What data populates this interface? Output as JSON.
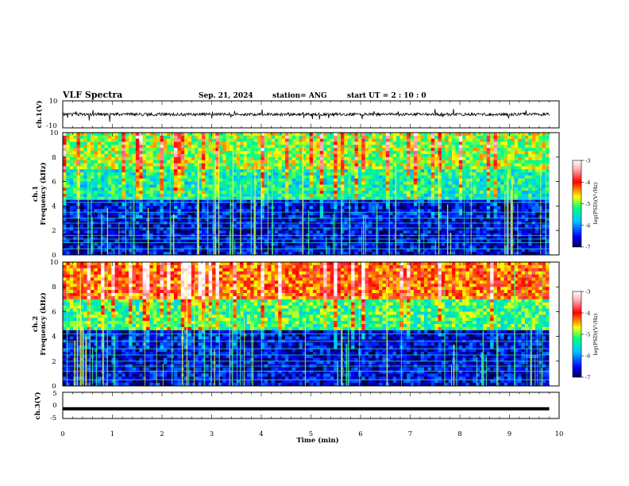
{
  "header": {
    "title": "VLF Spectra",
    "date": "Sep. 21, 2024",
    "station": "station= ANG",
    "start": "start UT = 2 : 10 : 0"
  },
  "chart_data": [
    {
      "type": "line",
      "name": "ch1-waveform",
      "ylabel": "ch.1(V)",
      "ylim": [
        -10,
        10
      ],
      "yticks": [
        "10",
        "-10"
      ],
      "x": [
        0,
        10
      ],
      "xlim": [
        0,
        10
      ],
      "mean_value": 0,
      "description_of_series": "noisy voltage trace near 0 V with sporadic spikes"
    },
    {
      "type": "heatmap",
      "name": "ch1-spectrogram",
      "ylabel": "ch.1 Frequency (kHz)",
      "ylim": [
        0,
        10
      ],
      "yticks": [
        "0",
        "2",
        "4",
        "6",
        "8",
        "10"
      ],
      "xlim": [
        0,
        9.8
      ],
      "colorbar": {
        "label": "log(PSD)(V²/Hz)",
        "range": [
          -7,
          -3
        ],
        "ticks": [
          "-3",
          "-4",
          "-5",
          "-6",
          "-7"
        ]
      },
      "band_levels": [
        {
          "freq_range": [
            0,
            4.5
          ],
          "level": -6.6
        },
        {
          "freq_range": [
            4.5,
            7
          ],
          "level": -5.4
        },
        {
          "freq_range": [
            7,
            10
          ],
          "level": -4.9
        }
      ],
      "line_freqs_khz": [
        0.5,
        1.0,
        1.3,
        1.6,
        2.2,
        2.6,
        3.0,
        3.5,
        4.3,
        4.6
      ]
    },
    {
      "type": "heatmap",
      "name": "ch2-spectrogram",
      "ylabel": "ch.2 Frequency (kHz)",
      "ylim": [
        0,
        10
      ],
      "yticks": [
        "0",
        "2",
        "4",
        "6",
        "8",
        "10"
      ],
      "xlim": [
        0,
        9.8
      ],
      "colorbar": {
        "label": "log(PSD)(V²/Hz)",
        "range": [
          -7,
          -3
        ],
        "ticks": [
          "-3",
          "-4",
          "-5",
          "-6",
          "-7"
        ]
      },
      "band_levels": [
        {
          "freq_range": [
            0,
            4.5
          ],
          "level": -6.6
        },
        {
          "freq_range": [
            4.5,
            7
          ],
          "level": -5.2
        },
        {
          "freq_range": [
            7,
            10
          ],
          "level": -4.2
        }
      ],
      "line_freqs_khz": [
        0.5,
        1.2,
        1.6,
        2.0,
        2.5,
        3.0,
        3.6,
        4.2
      ]
    },
    {
      "type": "line",
      "name": "ch3-waveform",
      "ylabel": "ch.3(V)",
      "ylim": [
        -5,
        5
      ],
      "yticks": [
        "5",
        "0",
        "-5"
      ],
      "x": [
        0,
        9.8
      ],
      "y": [
        -1.3,
        -1.3
      ],
      "xlabel": "Time (min)",
      "xlim": [
        0,
        10
      ],
      "xticks": [
        "0",
        "1",
        "2",
        "3",
        "4",
        "5",
        "6",
        "7",
        "8",
        "9",
        "10"
      ]
    }
  ]
}
